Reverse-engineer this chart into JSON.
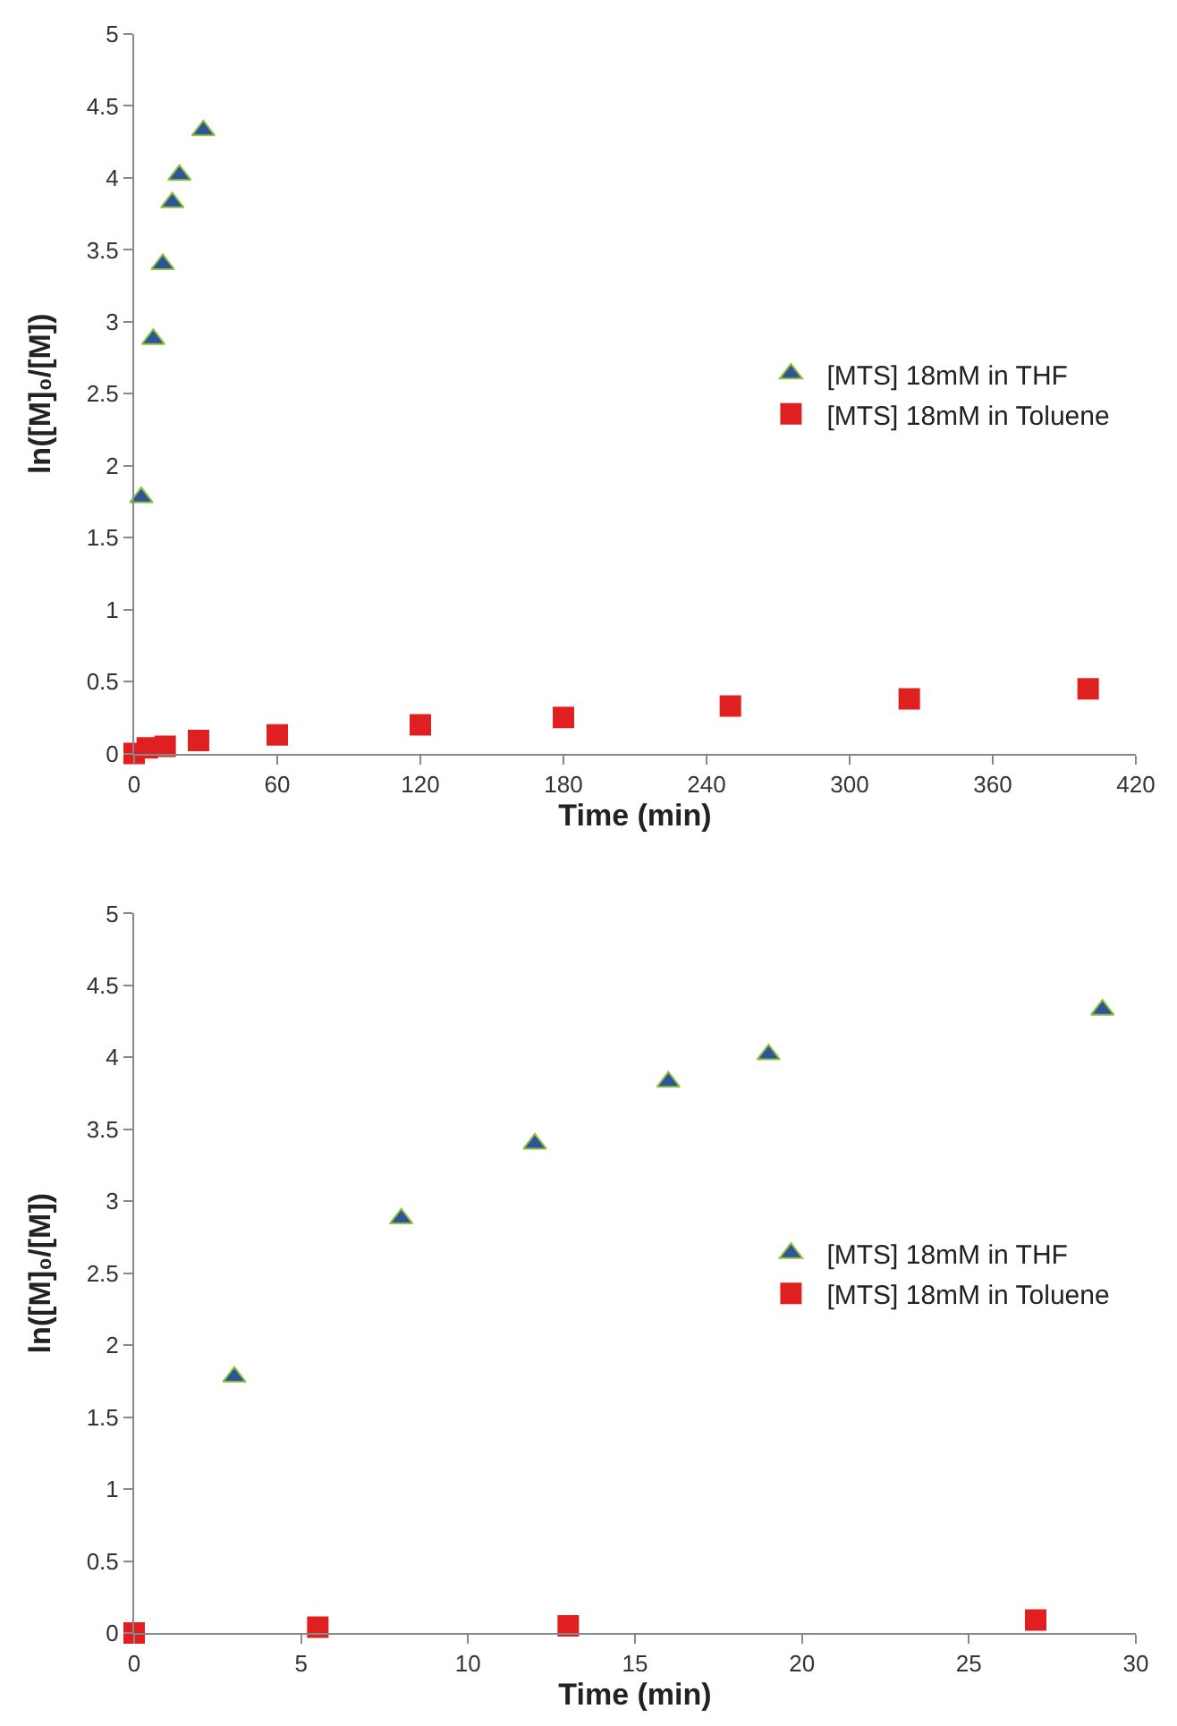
{
  "chart_data": [
    {
      "type": "scatter",
      "xlabel": "Time (min)",
      "ylabel": "ln([M]₀/[M])",
      "xlim": [
        0,
        420
      ],
      "xticks": [
        0,
        60,
        120,
        180,
        240,
        300,
        360,
        420
      ],
      "ylim": [
        0,
        5
      ],
      "yticks": [
        0,
        0.5,
        1,
        1.5,
        2,
        2.5,
        3,
        3.5,
        4,
        4.5,
        5
      ],
      "legend": "right",
      "series": [
        {
          "name": "[MTS] 18mM in THF",
          "color": "#2f5597",
          "marker": "triangle",
          "x": [
            3,
            8,
            12,
            16,
            19,
            29
          ],
          "values": [
            1.78,
            2.88,
            3.4,
            3.83,
            4.02,
            4.33
          ]
        },
        {
          "name": "[MTS] 18mM in Toluene",
          "color": "#e02020",
          "marker": "square",
          "x": [
            0,
            5.5,
            13,
            27,
            60,
            120,
            180,
            250,
            325,
            400
          ],
          "values": [
            0,
            0.04,
            0.05,
            0.09,
            0.13,
            0.2,
            0.25,
            0.33,
            0.38,
            0.45
          ]
        }
      ]
    },
    {
      "type": "scatter",
      "xlabel": "Time (min)",
      "ylabel": "ln([M]₀/[M])",
      "xlim": [
        0,
        30
      ],
      "xticks": [
        0,
        5,
        10,
        15,
        20,
        25,
        30
      ],
      "ylim": [
        0,
        5
      ],
      "yticks": [
        0,
        0.5,
        1,
        1.5,
        2,
        2.5,
        3,
        3.5,
        4,
        4.5,
        5
      ],
      "legend": "right",
      "series": [
        {
          "name": "[MTS] 18mM in THF",
          "color": "#2f5597",
          "marker": "triangle",
          "x": [
            3,
            8,
            12,
            16,
            19,
            29
          ],
          "values": [
            1.78,
            2.88,
            3.4,
            3.83,
            4.02,
            4.33
          ]
        },
        {
          "name": "[MTS] 18mM in Toluene",
          "color": "#e02020",
          "marker": "square",
          "x": [
            0,
            5.5,
            13,
            27
          ],
          "values": [
            0,
            0.04,
            0.05,
            0.09
          ]
        }
      ]
    }
  ]
}
